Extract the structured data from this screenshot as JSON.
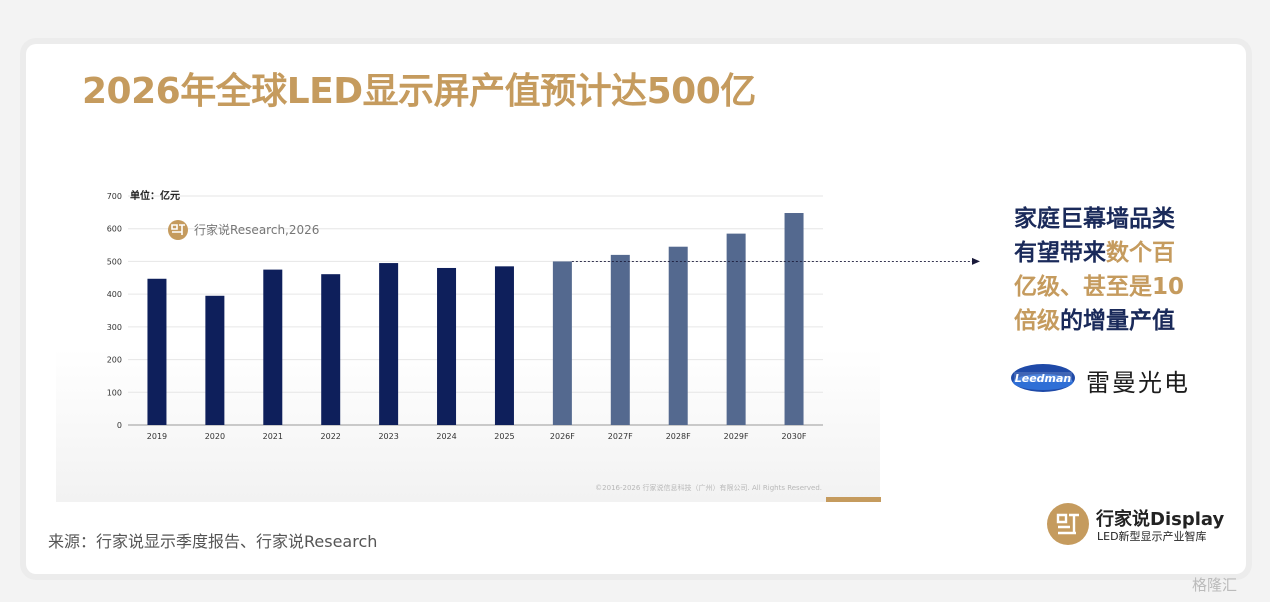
{
  "slide": {
    "title": "2026年全球LED显示屏产值预计达500亿",
    "source": "来源：行家说显示季度报告、行家说Research"
  },
  "chart_data": {
    "type": "bar",
    "unit_label": "单位：亿元",
    "categories": [
      "2019",
      "2020",
      "2021",
      "2022",
      "2023",
      "2024",
      "2025",
      "2026F",
      "2027F",
      "2028F",
      "2029F",
      "2030F"
    ],
    "values": [
      447,
      395,
      475,
      461,
      495,
      480,
      485,
      500,
      520,
      545,
      585,
      648
    ],
    "forecast_from_index": 7,
    "ylim": [
      0,
      700
    ],
    "yticks": [
      0,
      100,
      200,
      300,
      400,
      500,
      600,
      700
    ],
    "grid": true,
    "colors": {
      "actual": "#0e1f5b",
      "forecast": "#54698f"
    },
    "reference_line_value": 500,
    "inner_watermark": "行家说Research,2026",
    "copyright": "©2016-2026 行家说信息科技（广州）有限公司. All Rights Reserved."
  },
  "callout": {
    "line1": "家庭巨幕墙品类",
    "line2_pre": "有望带来",
    "line2_hl": "数个百",
    "line3_hl": "亿级、甚至是10",
    "line4_hl": "倍级",
    "line4_post": "的增量产值"
  },
  "partner": {
    "logo_text": "Leedman",
    "name": "雷曼光电"
  },
  "brand": {
    "name": "行家说Display",
    "tagline": "LED新型显示产业智库"
  },
  "watermark": "格隆汇"
}
